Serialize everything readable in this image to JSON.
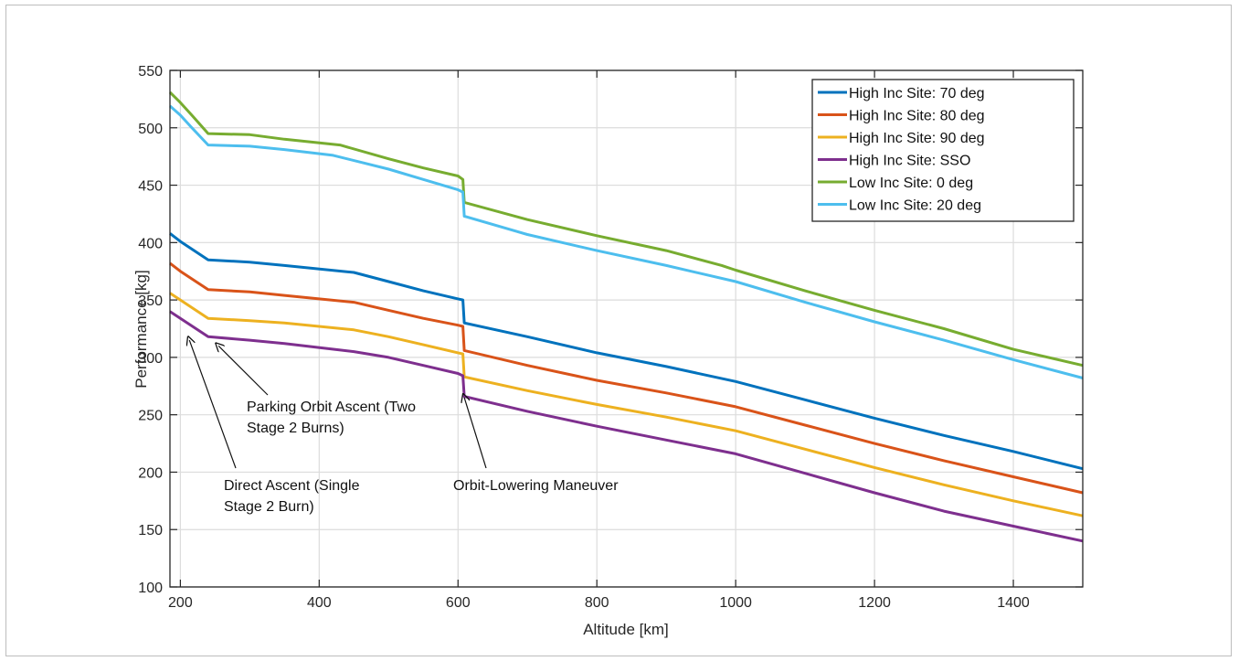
{
  "chart_data": {
    "type": "line",
    "title": "",
    "xlabel": "Altitude [km]",
    "ylabel": "Performance [kg]",
    "xlim": [
      185,
      1500
    ],
    "ylim": [
      100,
      550
    ],
    "xticks": [
      200,
      400,
      600,
      800,
      1000,
      1200,
      1400
    ],
    "yticks": [
      100,
      150,
      200,
      250,
      300,
      350,
      400,
      450,
      500,
      550
    ],
    "grid": true,
    "legend_position": "top-right",
    "series": [
      {
        "name": "High Inc Site: 70 deg",
        "color": "#0072BD",
        "points": [
          [
            185,
            408
          ],
          [
            200,
            401
          ],
          [
            240,
            385
          ],
          [
            300,
            383
          ],
          [
            350,
            380
          ],
          [
            450,
            374
          ],
          [
            500,
            366
          ],
          [
            550,
            358
          ],
          [
            600,
            351
          ],
          [
            607,
            350
          ],
          [
            609,
            330
          ],
          [
            700,
            318
          ],
          [
            800,
            304
          ],
          [
            900,
            292
          ],
          [
            1000,
            279
          ],
          [
            1100,
            263
          ],
          [
            1200,
            247
          ],
          [
            1300,
            232
          ],
          [
            1400,
            218
          ],
          [
            1500,
            203
          ]
        ]
      },
      {
        "name": "High Inc Site: 80 deg",
        "color": "#D95319",
        "points": [
          [
            185,
            382
          ],
          [
            200,
            375
          ],
          [
            240,
            359
          ],
          [
            300,
            357
          ],
          [
            350,
            354
          ],
          [
            450,
            348
          ],
          [
            500,
            341
          ],
          [
            550,
            334
          ],
          [
            600,
            328
          ],
          [
            607,
            327
          ],
          [
            609,
            306
          ],
          [
            700,
            293
          ],
          [
            800,
            280
          ],
          [
            900,
            269
          ],
          [
            1000,
            257
          ],
          [
            1100,
            241
          ],
          [
            1200,
            225
          ],
          [
            1300,
            210
          ],
          [
            1400,
            196
          ],
          [
            1500,
            182
          ]
        ]
      },
      {
        "name": "High Inc Site: 90 deg",
        "color": "#EDB120",
        "points": [
          [
            185,
            356
          ],
          [
            200,
            350
          ],
          [
            240,
            334
          ],
          [
            300,
            332
          ],
          [
            350,
            330
          ],
          [
            450,
            324
          ],
          [
            500,
            318
          ],
          [
            550,
            311
          ],
          [
            600,
            304
          ],
          [
            607,
            303
          ],
          [
            609,
            283
          ],
          [
            700,
            271
          ],
          [
            800,
            259
          ],
          [
            900,
            248
          ],
          [
            1000,
            236
          ],
          [
            1100,
            220
          ],
          [
            1200,
            204
          ],
          [
            1300,
            189
          ],
          [
            1400,
            175
          ],
          [
            1500,
            162
          ]
        ]
      },
      {
        "name": "High Inc Site: SSO",
        "color": "#7E2F8E",
        "points": [
          [
            185,
            340
          ],
          [
            200,
            334
          ],
          [
            240,
            318
          ],
          [
            300,
            315
          ],
          [
            350,
            312
          ],
          [
            450,
            305
          ],
          [
            500,
            300
          ],
          [
            550,
            293
          ],
          [
            600,
            286
          ],
          [
            607,
            284
          ],
          [
            609,
            266
          ],
          [
            700,
            253
          ],
          [
            800,
            240
          ],
          [
            900,
            228
          ],
          [
            1000,
            216
          ],
          [
            1100,
            199
          ],
          [
            1200,
            182
          ],
          [
            1300,
            166
          ],
          [
            1400,
            153
          ],
          [
            1500,
            140
          ]
        ]
      },
      {
        "name": "Low Inc Site: 0 deg",
        "color": "#77AC30",
        "points": [
          [
            185,
            531
          ],
          [
            200,
            522
          ],
          [
            215,
            512
          ],
          [
            240,
            495
          ],
          [
            300,
            494
          ],
          [
            350,
            490
          ],
          [
            430,
            485
          ],
          [
            500,
            473
          ],
          [
            550,
            465
          ],
          [
            600,
            458
          ],
          [
            607,
            455
          ],
          [
            609,
            435
          ],
          [
            700,
            420
          ],
          [
            800,
            406
          ],
          [
            900,
            393
          ],
          [
            980,
            380
          ],
          [
            1000,
            376
          ],
          [
            1100,
            358
          ],
          [
            1200,
            341
          ],
          [
            1300,
            325
          ],
          [
            1400,
            307
          ],
          [
            1500,
            293
          ]
        ]
      },
      {
        "name": "Low Inc Site: 20 deg",
        "color": "#4DBEEE",
        "points": [
          [
            185,
            519
          ],
          [
            200,
            511
          ],
          [
            215,
            501
          ],
          [
            240,
            485
          ],
          [
            300,
            484
          ],
          [
            350,
            481
          ],
          [
            420,
            476
          ],
          [
            500,
            464
          ],
          [
            550,
            455
          ],
          [
            600,
            446
          ],
          [
            607,
            444
          ],
          [
            609,
            423
          ],
          [
            700,
            407
          ],
          [
            800,
            393
          ],
          [
            900,
            380
          ],
          [
            1000,
            366
          ],
          [
            1100,
            348
          ],
          [
            1200,
            331
          ],
          [
            1300,
            315
          ],
          [
            1400,
            298
          ],
          [
            1500,
            282
          ]
        ]
      }
    ],
    "annotations": [
      {
        "text_lines": [
          "Direct Ascent (Single",
          "Stage 2 Burn)"
        ],
        "arrow_to": [
          213,
          315
        ]
      },
      {
        "text_lines": [
          "Parking Orbit Ascent (Two",
          "Stage 2 Burns)"
        ],
        "arrow_to": [
          255,
          310
        ]
      },
      {
        "text_lines": [
          "Orbit-Lowering Maneuver"
        ],
        "arrow_to": [
          609,
          265
        ]
      }
    ]
  }
}
